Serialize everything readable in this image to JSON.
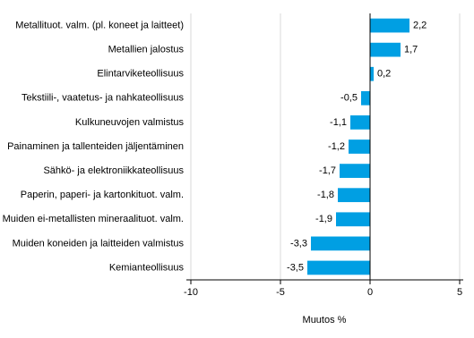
{
  "chart_data": {
    "type": "hbar",
    "x_label": "Muutos %",
    "categories": [
      "Metallituot. valm. (pl. koneet ja laitteet)",
      "Metallien jalostus",
      "Elintarviketeollisuus",
      "Tekstiili-, vaatetus- ja nahkateollisuus",
      "Kulkuneuvojen valmistus",
      "Painaminen ja tallenteiden jäljentäminen",
      "Sähkö- ja elektroniikkateollisuus",
      "Paperin, paperi- ja kartonkituot. valm.",
      "Muiden ei-metallisten mineraalituot. valm.",
      "Muiden koneiden ja laitteiden valmistus",
      "Kemianteollisuus"
    ],
    "values": [
      2.2,
      1.7,
      0.2,
      -0.5,
      -1.1,
      -1.2,
      -1.7,
      -1.8,
      -1.9,
      -3.3,
      -3.5
    ],
    "value_labels": [
      "2,2",
      "1,7",
      "0,2",
      "-0,5",
      "-1,1",
      "-1,2",
      "-1,7",
      "-1,8",
      "-1,9",
      "-3,3",
      "-3,5"
    ],
    "color": "#009fe3",
    "xlim": [
      -10.25,
      5.2
    ],
    "xticks": [
      -10,
      -5,
      0,
      5
    ],
    "grid": true
  }
}
